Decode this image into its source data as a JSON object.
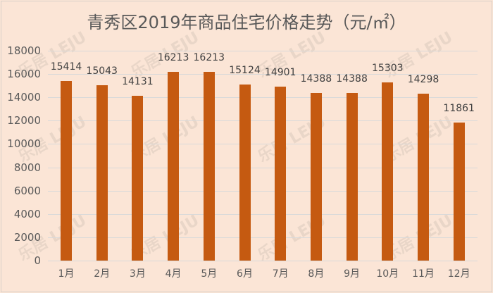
{
  "chart_data": {
    "type": "bar",
    "title": "青秀区2019年商品住宅价格走势（元/㎡）",
    "categories": [
      "1月",
      "2月",
      "3月",
      "4月",
      "5月",
      "6月",
      "7月",
      "8月",
      "9月",
      "10月",
      "11月",
      "12月"
    ],
    "values": [
      15414,
      15043,
      14131,
      16213,
      16213,
      15124,
      14901,
      14388,
      14388,
      15303,
      14298,
      11861
    ],
    "xlabel": "",
    "ylabel": "",
    "ylim": [
      0,
      18000
    ],
    "yticks": [
      0,
      2000,
      4000,
      6000,
      8000,
      10000,
      12000,
      14000,
      16000,
      18000
    ],
    "grid": true,
    "bar_color": "#c55a11",
    "background": "#fbe5d6",
    "watermark": "乐居 LEJU"
  }
}
